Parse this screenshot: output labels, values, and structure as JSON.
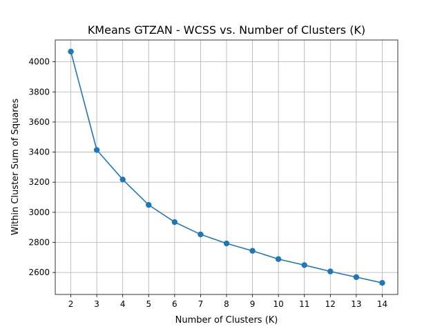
{
  "chart_data": {
    "type": "line",
    "title": "KMeans GTZAN - WCSS vs. Number of Clusters (K)",
    "xlabel": "Number of Clusters (K)",
    "ylabel": "Within Cluster Sum of Squares",
    "x": [
      2,
      3,
      4,
      5,
      6,
      7,
      8,
      9,
      10,
      11,
      12,
      13,
      14
    ],
    "series": [
      {
        "values": [
          4068,
          3414,
          3218,
          3049,
          2935,
          2853,
          2793,
          2744,
          2689,
          2649,
          2607,
          2569,
          2531
        ]
      }
    ],
    "xticks": [
      "2",
      "3",
      "4",
      "5",
      "6",
      "7",
      "8",
      "9",
      "10",
      "11",
      "12",
      "13",
      "14"
    ],
    "yticks": [
      "2600",
      "2800",
      "3000",
      "3200",
      "3400",
      "3600",
      "3800",
      "4000"
    ],
    "xlim": [
      1.4,
      14.6
    ],
    "ylim": [
      2454,
      4145
    ],
    "grid": true,
    "markers": true,
    "colors": {
      "line": "#1f77b4",
      "grid": "#b0b0b0"
    }
  }
}
